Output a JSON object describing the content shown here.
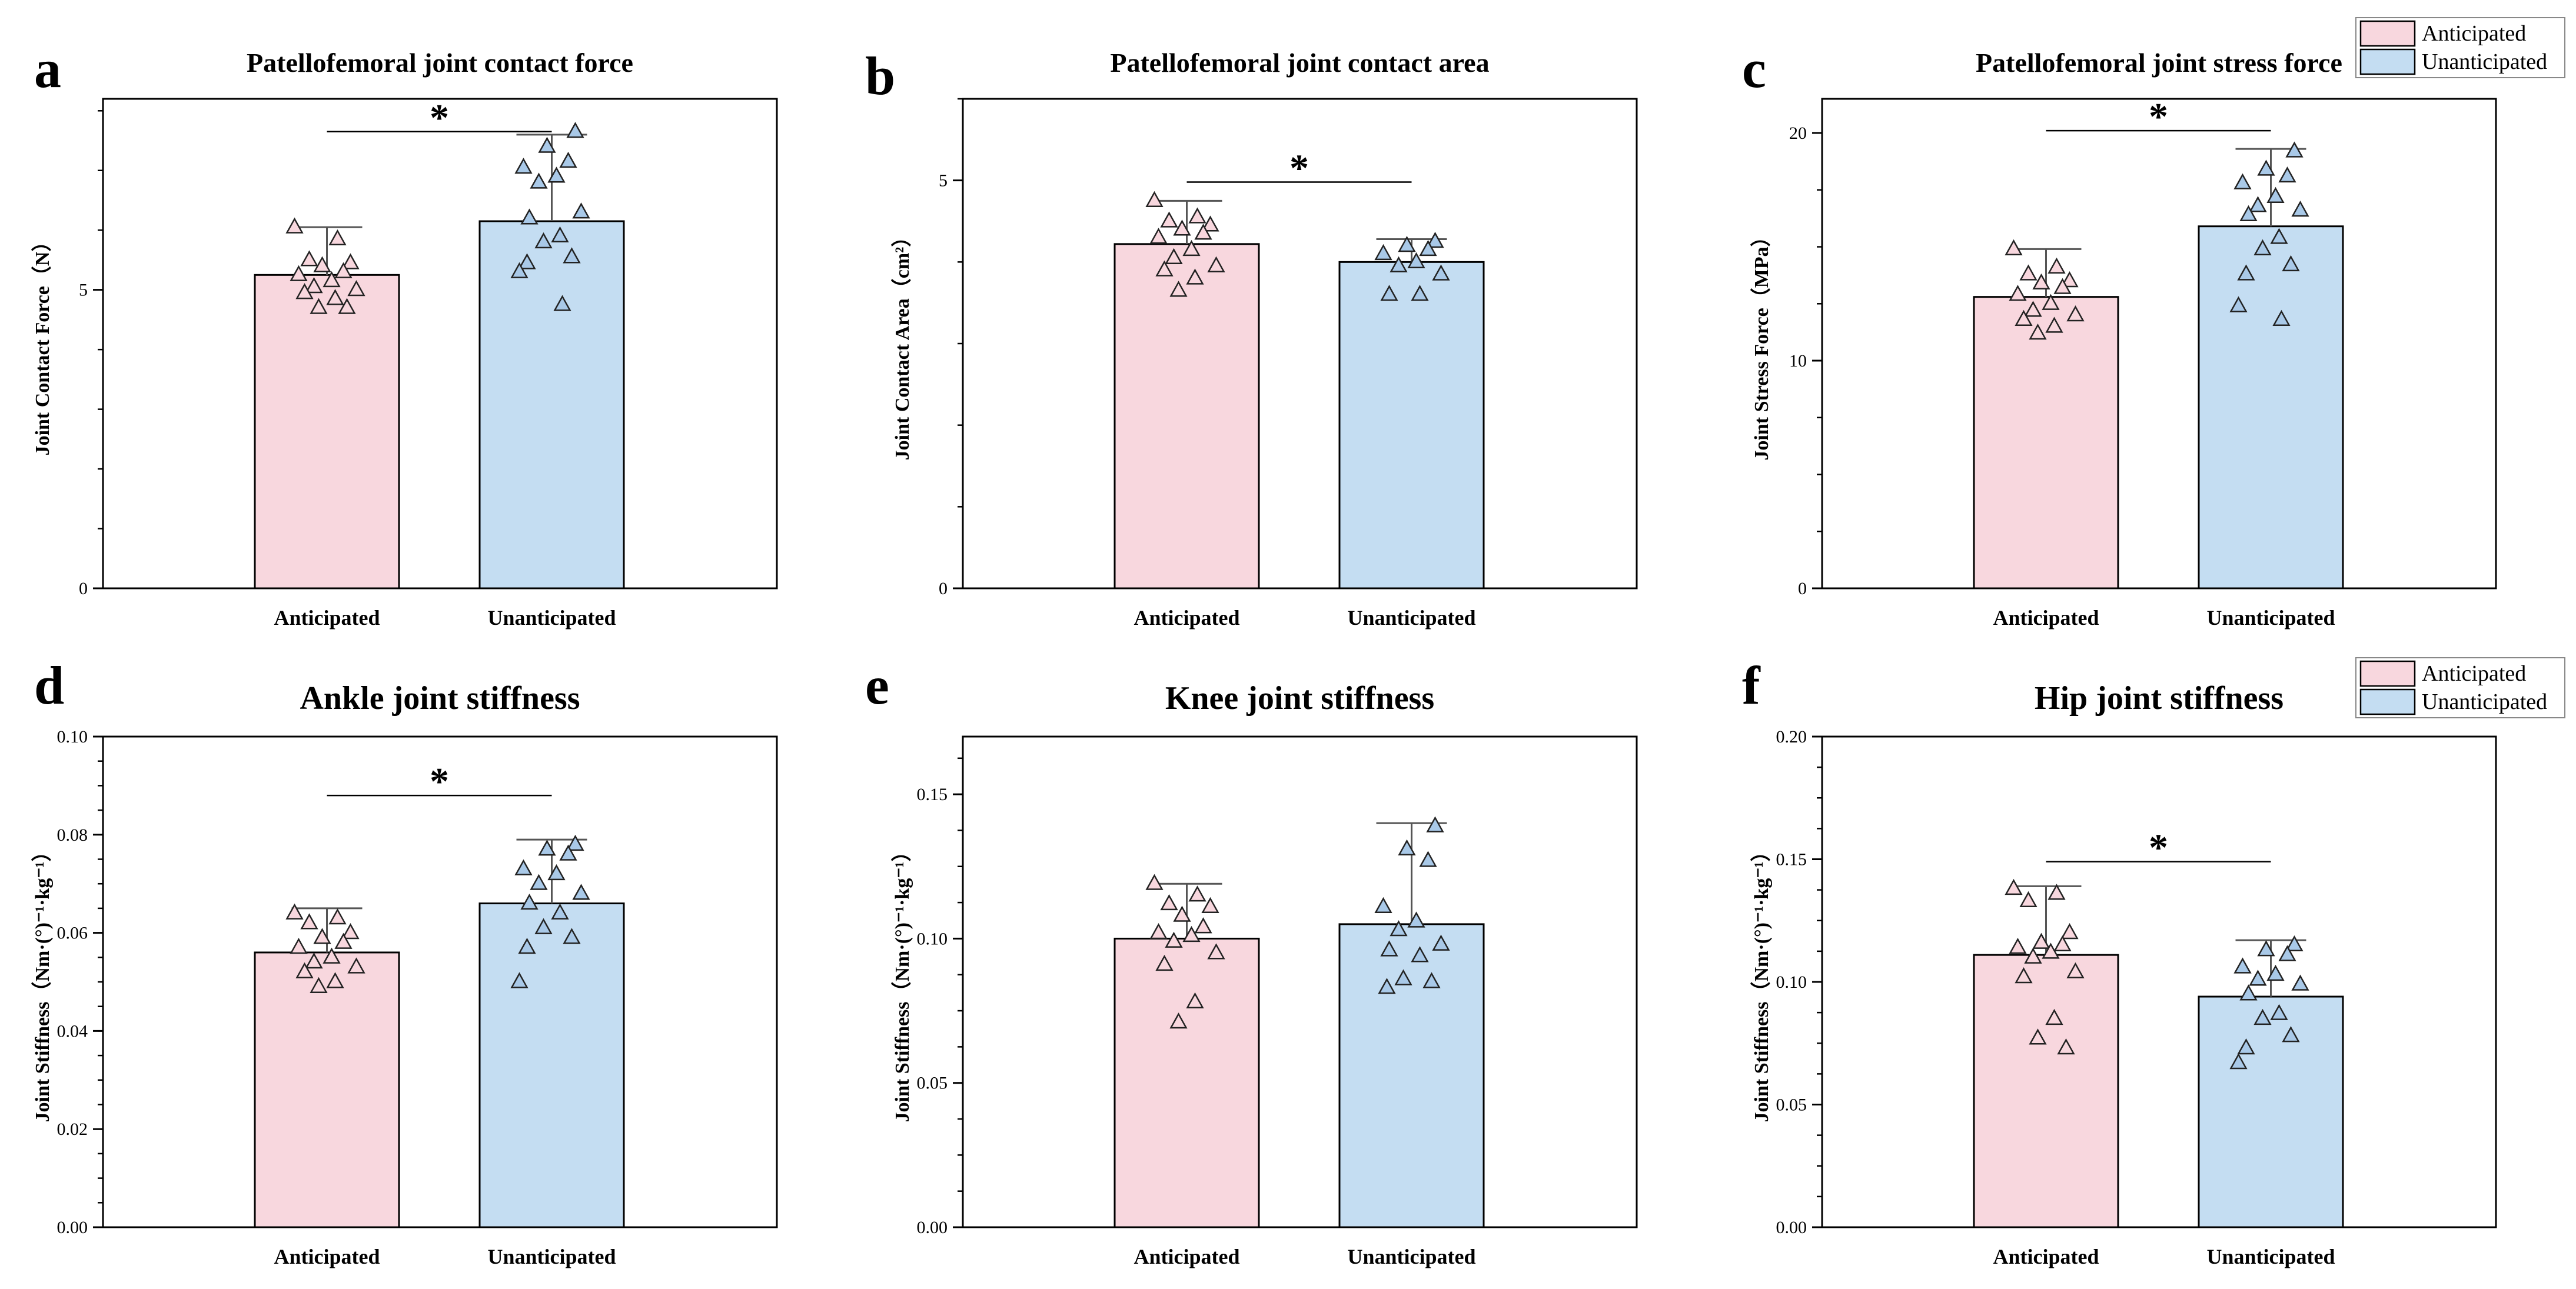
{
  "figure": {
    "colors": {
      "anticipated": "#f8d7de",
      "unanticipated": "#c4ddf2",
      "stroke": "#000000",
      "marker_anticipated": "#f8d7de",
      "marker_unanticipated": "#a9c9e8"
    }
  },
  "chart_data": [
    {
      "panel": "a",
      "type": "bar",
      "title": "Patellofemoral joint contact force",
      "ylabel": "Joint Contact Force（N）",
      "categories": [
        "Anticipated",
        "Unanticipated"
      ],
      "values": [
        5.25,
        6.15
      ],
      "error_upper": [
        6.05,
        7.6
      ],
      "ylim": [
        0,
        8.2
      ],
      "yticks": [
        0,
        5
      ],
      "ytick_labels": [
        "0",
        "5"
      ],
      "minor_step": 1,
      "points": [
        [
          6.05,
          5.85,
          5.5,
          5.45,
          5.4,
          5.3,
          5.25,
          5.15,
          5.05,
          5.0,
          4.95,
          4.85,
          4.7,
          4.7
        ],
        [
          7.65,
          7.4,
          7.15,
          7.05,
          6.9,
          6.8,
          6.3,
          6.2,
          5.9,
          5.8,
          5.55,
          5.45,
          5.3,
          4.75
        ]
      ],
      "significance": {
        "label": "*",
        "y": 7.65
      },
      "legend": null
    },
    {
      "panel": "b",
      "type": "bar",
      "title": "Patellofemoral joint contact area",
      "ylabel": "Joint Contact Area（cm²）",
      "categories": [
        "Anticipated",
        "Unanticipated"
      ],
      "values": [
        4.22,
        4.0
      ],
      "error_upper": [
        4.75,
        4.28
      ],
      "ylim": [
        0,
        6.0
      ],
      "yticks": [
        0,
        5
      ],
      "ytick_labels": [
        "0",
        "5"
      ],
      "minor_step": 1,
      "points": [
        [
          4.75,
          4.55,
          4.5,
          4.45,
          4.4,
          4.35,
          4.3,
          4.15,
          4.05,
          3.95,
          3.9,
          3.8,
          3.65
        ],
        [
          4.25,
          4.2,
          4.15,
          4.1,
          4.0,
          3.95,
          3.85,
          3.6,
          3.6
        ]
      ],
      "significance": {
        "label": "*",
        "y": 4.98
      },
      "legend": null
    },
    {
      "panel": "c",
      "type": "bar",
      "title": "Patellofemoral joint stress force",
      "ylabel": "Joint Stress Force（MPa）",
      "categories": [
        "Anticipated",
        "Unanticipated"
      ],
      "values": [
        12.8,
        15.9
      ],
      "error_upper": [
        14.9,
        19.3
      ],
      "ylim": [
        0,
        21.5
      ],
      "yticks": [
        0,
        10,
        20
      ],
      "ytick_labels": [
        "0",
        "10",
        "20"
      ],
      "minor_step": 2.5,
      "points": [
        [
          14.9,
          14.1,
          13.8,
          13.5,
          13.4,
          13.2,
          12.9,
          12.5,
          12.2,
          12.0,
          11.8,
          11.5,
          11.2
        ],
        [
          19.2,
          18.4,
          18.1,
          17.8,
          17.2,
          16.8,
          16.6,
          16.4,
          15.4,
          14.9,
          14.2,
          13.8,
          12.4,
          11.8
        ]
      ],
      "significance": {
        "label": "*",
        "y": 20.1
      },
      "legend": {
        "position": "top-right",
        "entries": [
          "Anticipated",
          "Unanticipated"
        ]
      }
    },
    {
      "panel": "d",
      "type": "bar",
      "title": "Ankle joint stiffness",
      "ylabel": "Joint Stiffness（Nm·(°)⁻¹·kg⁻¹）",
      "categories": [
        "Anticipated",
        "Unanticipated"
      ],
      "values": [
        0.056,
        0.066
      ],
      "error_upper": [
        0.065,
        0.079
      ],
      "ylim": [
        0,
        0.1
      ],
      "yticks": [
        0,
        0.02,
        0.04,
        0.06,
        0.08,
        0.1
      ],
      "ytick_labels": [
        "0.00",
        "0.02",
        "0.04",
        "0.06",
        "0.08",
        "0.10"
      ],
      "minor_step": 0.005,
      "points": [
        [
          0.064,
          0.063,
          0.062,
          0.06,
          0.059,
          0.058,
          0.057,
          0.055,
          0.054,
          0.053,
          0.052,
          0.05,
          0.049
        ],
        [
          0.078,
          0.077,
          0.076,
          0.073,
          0.072,
          0.07,
          0.068,
          0.066,
          0.064,
          0.061,
          0.059,
          0.057,
          0.05
        ]
      ],
      "significance": {
        "label": "*",
        "y": 0.088
      },
      "legend": null
    },
    {
      "panel": "e",
      "type": "bar",
      "title": "Knee joint stiffness",
      "ylabel": "Joint Stiffness（Nm·(°)⁻¹·kg⁻¹）",
      "categories": [
        "Anticipated",
        "Unanticipated"
      ],
      "values": [
        0.1,
        0.105
      ],
      "error_upper": [
        0.119,
        0.14
      ],
      "ylim": [
        0,
        0.17
      ],
      "yticks": [
        0,
        0.05,
        0.1,
        0.15
      ],
      "ytick_labels": [
        "0.00",
        "0.05",
        "0.10",
        "0.15"
      ],
      "minor_step": 0.0125,
      "points": [
        [
          0.119,
          0.115,
          0.112,
          0.111,
          0.108,
          0.104,
          0.102,
          0.101,
          0.099,
          0.095,
          0.091,
          0.078,
          0.071
        ],
        [
          0.139,
          0.131,
          0.127,
          0.111,
          0.106,
          0.103,
          0.098,
          0.096,
          0.094,
          0.086,
          0.085,
          0.083
        ]
      ],
      "significance": null,
      "legend": null
    },
    {
      "panel": "f",
      "type": "bar",
      "title": "Hip joint stiffness",
      "ylabel": "Joint Stiffness（Nm·(°)⁻¹·kg⁻¹）",
      "categories": [
        "Anticipated",
        "Unanticipated"
      ],
      "values": [
        0.111,
        0.094
      ],
      "error_upper": [
        0.139,
        0.117
      ],
      "ylim": [
        0,
        0.2
      ],
      "yticks": [
        0,
        0.05,
        0.1,
        0.15,
        0.2
      ],
      "ytick_labels": [
        "0.00",
        "0.05",
        "0.10",
        "0.15",
        "0.20"
      ],
      "minor_step": 0.0125,
      "points": [
        [
          0.138,
          0.136,
          0.133,
          0.12,
          0.116,
          0.115,
          0.114,
          0.112,
          0.11,
          0.104,
          0.102,
          0.085,
          0.077,
          0.073
        ],
        [
          0.115,
          0.113,
          0.111,
          0.106,
          0.103,
          0.101,
          0.099,
          0.095,
          0.087,
          0.085,
          0.078,
          0.073,
          0.067
        ]
      ],
      "significance": {
        "label": "*",
        "y": 0.149
      },
      "legend": {
        "position": "top-right",
        "entries": [
          "Anticipated",
          "Unanticipated"
        ]
      }
    }
  ]
}
